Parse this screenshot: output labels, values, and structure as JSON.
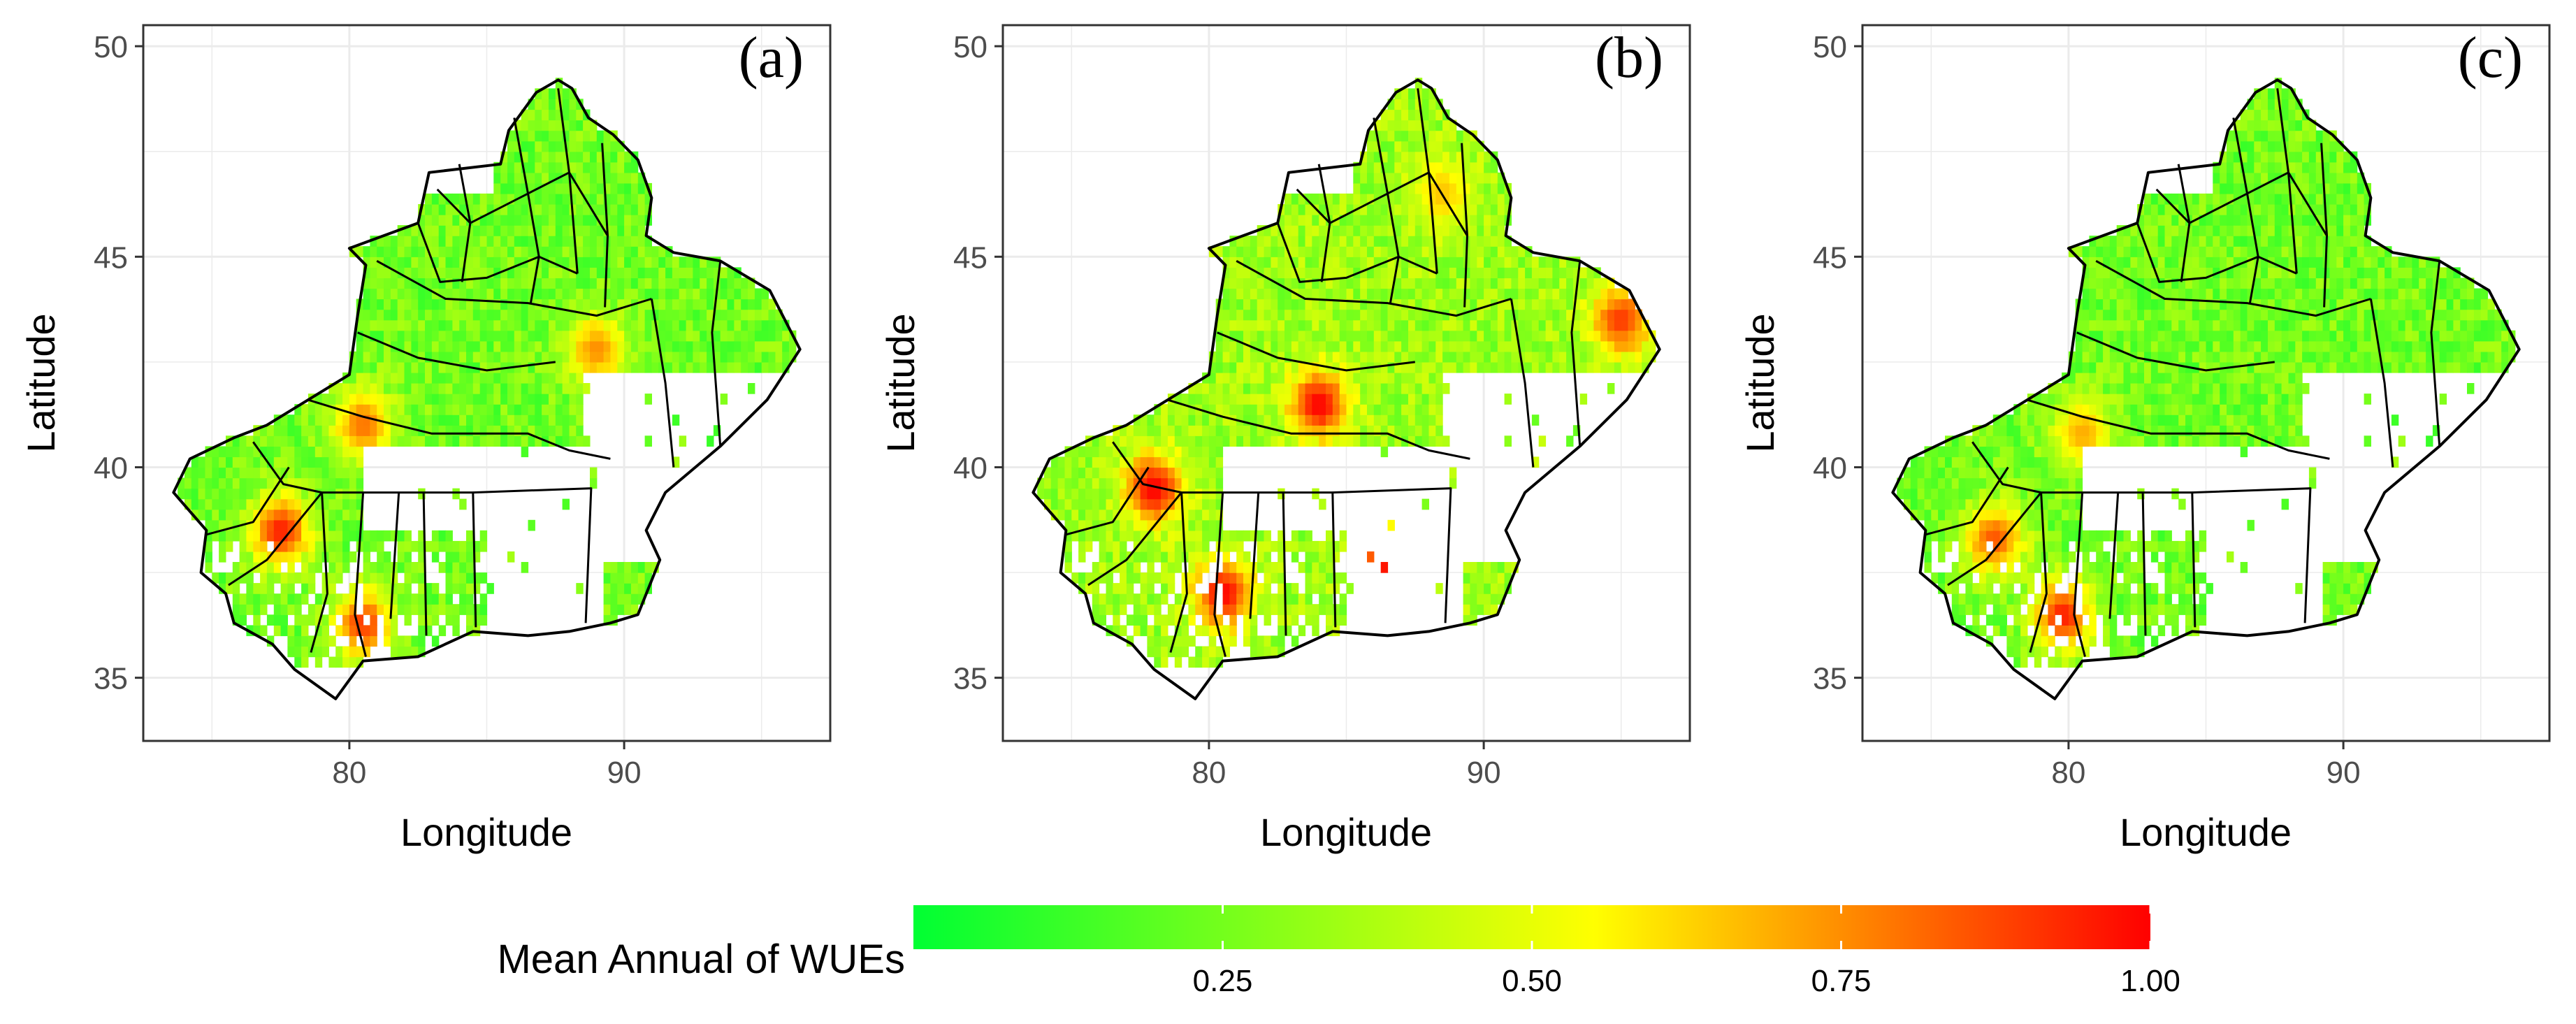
{
  "figure": {
    "panels": [
      {
        "label": "(a)",
        "xlabel": "Longitude",
        "ylabel": "Latitude",
        "xticks": [
          80,
          90
        ],
        "yticks": [
          35,
          40,
          45,
          50
        ],
        "xlim": [
          72.5,
          97.5
        ],
        "ylim": [
          33.5,
          50.5
        ],
        "hotspots": [
          {
            "lon": 77.5,
            "lat": 38.5,
            "value": 0.95
          },
          {
            "lon": 80.5,
            "lat": 36.3,
            "value": 0.9
          },
          {
            "lon": 80.5,
            "lat": 41.0,
            "value": 0.8
          },
          {
            "lon": 89.0,
            "lat": 42.8,
            "value": 0.75
          }
        ]
      },
      {
        "label": "(b)",
        "xlabel": "Longitude",
        "ylabel": "Latitude",
        "xticks": [
          80,
          90
        ],
        "yticks": [
          35,
          40,
          45,
          50
        ],
        "xlim": [
          72.5,
          97.5
        ],
        "ylim": [
          33.5,
          50.5
        ],
        "hotspots": [
          {
            "lon": 78.0,
            "lat": 39.5,
            "value": 1.0
          },
          {
            "lon": 80.5,
            "lat": 37.0,
            "value": 1.0
          },
          {
            "lon": 84.0,
            "lat": 41.5,
            "value": 1.0
          },
          {
            "lon": 86.5,
            "lat": 37.8,
            "value": 1.0
          },
          {
            "lon": 88.5,
            "lat": 46.5,
            "value": 0.65
          },
          {
            "lon": 95.0,
            "lat": 43.5,
            "value": 0.9
          }
        ]
      },
      {
        "label": "(c)",
        "xlabel": "Longitude",
        "ylabel": "Latitude",
        "xticks": [
          80,
          90
        ],
        "yticks": [
          35,
          40,
          45,
          50
        ],
        "xlim": [
          72.5,
          97.5
        ],
        "ylim": [
          33.5,
          50.5
        ],
        "hotspots": [
          {
            "lon": 77.3,
            "lat": 38.3,
            "value": 0.85
          },
          {
            "lon": 79.8,
            "lat": 36.5,
            "value": 0.95
          },
          {
            "lon": 80.5,
            "lat": 40.8,
            "value": 0.7
          }
        ]
      }
    ],
    "legend": {
      "title": "Mean Annual of WUEs",
      "ticks": [
        0.25,
        0.5,
        0.75,
        1.0
      ],
      "tick_labels": [
        "0.25",
        "0.50",
        "0.75",
        "1.00"
      ],
      "range": [
        0.0,
        1.0
      ],
      "colors": [
        "#00ff33",
        "#ffff00",
        "#ff0000"
      ]
    }
  }
}
